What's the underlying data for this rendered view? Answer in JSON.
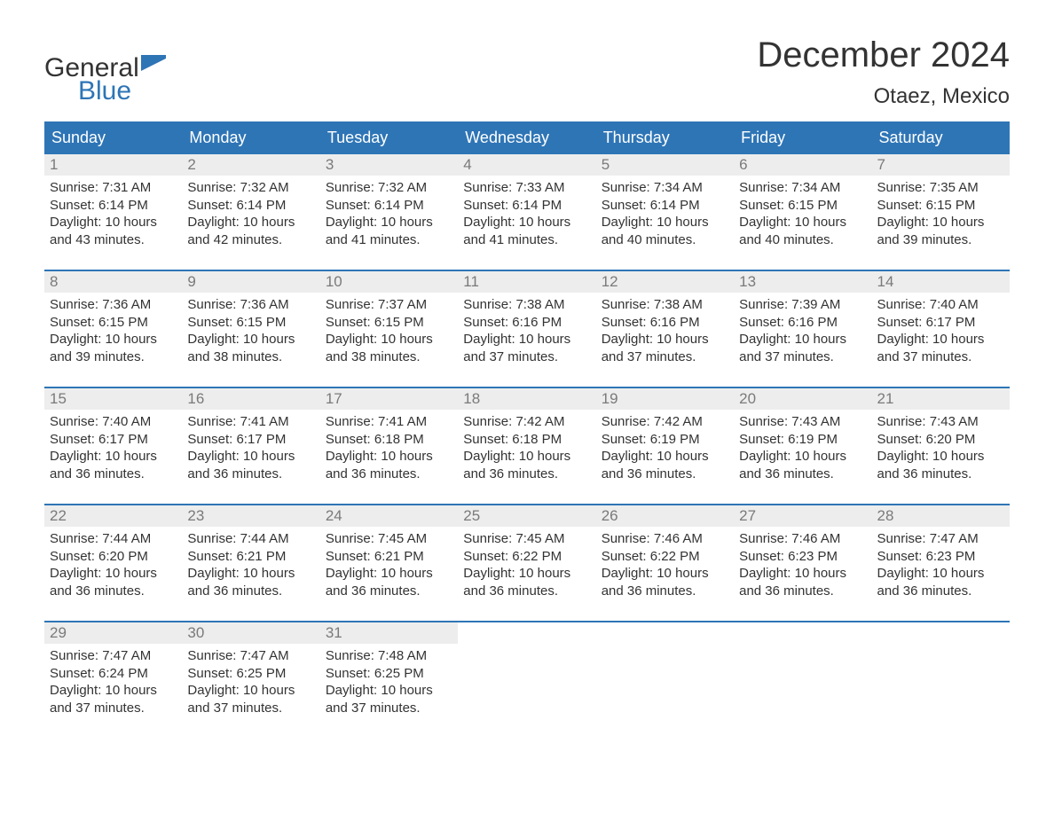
{
  "brand": {
    "word1": "General",
    "word2": "Blue"
  },
  "month_title": "December 2024",
  "location": "Otaez, Mexico",
  "colors": {
    "header_bg": "#2e75b6",
    "header_text": "#ffffff",
    "daynum_bg": "#ededed",
    "daynum_text": "#7a7a7a",
    "body_text": "#333333",
    "border": "#2e75b6",
    "page_bg": "#ffffff",
    "logo_blue": "#2e75b6"
  },
  "typography": {
    "month_title_fontsize": 40,
    "location_fontsize": 24,
    "day_header_fontsize": 18,
    "day_number_fontsize": 17,
    "body_fontsize": 15
  },
  "day_headers": [
    "Sunday",
    "Monday",
    "Tuesday",
    "Wednesday",
    "Thursday",
    "Friday",
    "Saturday"
  ],
  "weeks": [
    [
      {
        "n": "1",
        "sr": "Sunrise: 7:31 AM",
        "ss": "Sunset: 6:14 PM",
        "d1": "Daylight: 10 hours",
        "d2": "and 43 minutes."
      },
      {
        "n": "2",
        "sr": "Sunrise: 7:32 AM",
        "ss": "Sunset: 6:14 PM",
        "d1": "Daylight: 10 hours",
        "d2": "and 42 minutes."
      },
      {
        "n": "3",
        "sr": "Sunrise: 7:32 AM",
        "ss": "Sunset: 6:14 PM",
        "d1": "Daylight: 10 hours",
        "d2": "and 41 minutes."
      },
      {
        "n": "4",
        "sr": "Sunrise: 7:33 AM",
        "ss": "Sunset: 6:14 PM",
        "d1": "Daylight: 10 hours",
        "d2": "and 41 minutes."
      },
      {
        "n": "5",
        "sr": "Sunrise: 7:34 AM",
        "ss": "Sunset: 6:14 PM",
        "d1": "Daylight: 10 hours",
        "d2": "and 40 minutes."
      },
      {
        "n": "6",
        "sr": "Sunrise: 7:34 AM",
        "ss": "Sunset: 6:15 PM",
        "d1": "Daylight: 10 hours",
        "d2": "and 40 minutes."
      },
      {
        "n": "7",
        "sr": "Sunrise: 7:35 AM",
        "ss": "Sunset: 6:15 PM",
        "d1": "Daylight: 10 hours",
        "d2": "and 39 minutes."
      }
    ],
    [
      {
        "n": "8",
        "sr": "Sunrise: 7:36 AM",
        "ss": "Sunset: 6:15 PM",
        "d1": "Daylight: 10 hours",
        "d2": "and 39 minutes."
      },
      {
        "n": "9",
        "sr": "Sunrise: 7:36 AM",
        "ss": "Sunset: 6:15 PM",
        "d1": "Daylight: 10 hours",
        "d2": "and 38 minutes."
      },
      {
        "n": "10",
        "sr": "Sunrise: 7:37 AM",
        "ss": "Sunset: 6:15 PM",
        "d1": "Daylight: 10 hours",
        "d2": "and 38 minutes."
      },
      {
        "n": "11",
        "sr": "Sunrise: 7:38 AM",
        "ss": "Sunset: 6:16 PM",
        "d1": "Daylight: 10 hours",
        "d2": "and 37 minutes."
      },
      {
        "n": "12",
        "sr": "Sunrise: 7:38 AM",
        "ss": "Sunset: 6:16 PM",
        "d1": "Daylight: 10 hours",
        "d2": "and 37 minutes."
      },
      {
        "n": "13",
        "sr": "Sunrise: 7:39 AM",
        "ss": "Sunset: 6:16 PM",
        "d1": "Daylight: 10 hours",
        "d2": "and 37 minutes."
      },
      {
        "n": "14",
        "sr": "Sunrise: 7:40 AM",
        "ss": "Sunset: 6:17 PM",
        "d1": "Daylight: 10 hours",
        "d2": "and 37 minutes."
      }
    ],
    [
      {
        "n": "15",
        "sr": "Sunrise: 7:40 AM",
        "ss": "Sunset: 6:17 PM",
        "d1": "Daylight: 10 hours",
        "d2": "and 36 minutes."
      },
      {
        "n": "16",
        "sr": "Sunrise: 7:41 AM",
        "ss": "Sunset: 6:17 PM",
        "d1": "Daylight: 10 hours",
        "d2": "and 36 minutes."
      },
      {
        "n": "17",
        "sr": "Sunrise: 7:41 AM",
        "ss": "Sunset: 6:18 PM",
        "d1": "Daylight: 10 hours",
        "d2": "and 36 minutes."
      },
      {
        "n": "18",
        "sr": "Sunrise: 7:42 AM",
        "ss": "Sunset: 6:18 PM",
        "d1": "Daylight: 10 hours",
        "d2": "and 36 minutes."
      },
      {
        "n": "19",
        "sr": "Sunrise: 7:42 AM",
        "ss": "Sunset: 6:19 PM",
        "d1": "Daylight: 10 hours",
        "d2": "and 36 minutes."
      },
      {
        "n": "20",
        "sr": "Sunrise: 7:43 AM",
        "ss": "Sunset: 6:19 PM",
        "d1": "Daylight: 10 hours",
        "d2": "and 36 minutes."
      },
      {
        "n": "21",
        "sr": "Sunrise: 7:43 AM",
        "ss": "Sunset: 6:20 PM",
        "d1": "Daylight: 10 hours",
        "d2": "and 36 minutes."
      }
    ],
    [
      {
        "n": "22",
        "sr": "Sunrise: 7:44 AM",
        "ss": "Sunset: 6:20 PM",
        "d1": "Daylight: 10 hours",
        "d2": "and 36 minutes."
      },
      {
        "n": "23",
        "sr": "Sunrise: 7:44 AM",
        "ss": "Sunset: 6:21 PM",
        "d1": "Daylight: 10 hours",
        "d2": "and 36 minutes."
      },
      {
        "n": "24",
        "sr": "Sunrise: 7:45 AM",
        "ss": "Sunset: 6:21 PM",
        "d1": "Daylight: 10 hours",
        "d2": "and 36 minutes."
      },
      {
        "n": "25",
        "sr": "Sunrise: 7:45 AM",
        "ss": "Sunset: 6:22 PM",
        "d1": "Daylight: 10 hours",
        "d2": "and 36 minutes."
      },
      {
        "n": "26",
        "sr": "Sunrise: 7:46 AM",
        "ss": "Sunset: 6:22 PM",
        "d1": "Daylight: 10 hours",
        "d2": "and 36 minutes."
      },
      {
        "n": "27",
        "sr": "Sunrise: 7:46 AM",
        "ss": "Sunset: 6:23 PM",
        "d1": "Daylight: 10 hours",
        "d2": "and 36 minutes."
      },
      {
        "n": "28",
        "sr": "Sunrise: 7:47 AM",
        "ss": "Sunset: 6:23 PM",
        "d1": "Daylight: 10 hours",
        "d2": "and 36 minutes."
      }
    ],
    [
      {
        "n": "29",
        "sr": "Sunrise: 7:47 AM",
        "ss": "Sunset: 6:24 PM",
        "d1": "Daylight: 10 hours",
        "d2": "and 37 minutes."
      },
      {
        "n": "30",
        "sr": "Sunrise: 7:47 AM",
        "ss": "Sunset: 6:25 PM",
        "d1": "Daylight: 10 hours",
        "d2": "and 37 minutes."
      },
      {
        "n": "31",
        "sr": "Sunrise: 7:48 AM",
        "ss": "Sunset: 6:25 PM",
        "d1": "Daylight: 10 hours",
        "d2": "and 37 minutes."
      },
      {
        "empty": true
      },
      {
        "empty": true
      },
      {
        "empty": true
      },
      {
        "empty": true
      }
    ]
  ]
}
